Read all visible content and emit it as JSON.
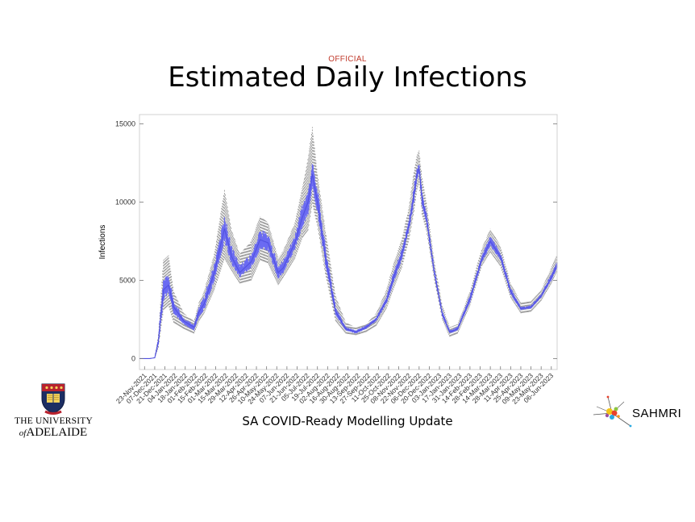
{
  "header": {
    "classification": "OFFICIAL",
    "title": "Estimated Daily Infections"
  },
  "footer": {
    "subtitle": "SA COVID-Ready Modelling Update"
  },
  "logos": {
    "university": {
      "line1": "THE UNIVERSITY",
      "of": "of",
      "line2": "ADELAIDE"
    },
    "institute": {
      "name": "SAHMRI"
    }
  },
  "chart_data": {
    "type": "area",
    "title": "",
    "xlabel": "",
    "ylabel": "Infections",
    "ylim": [
      -700,
      15600
    ],
    "yticks": [
      0,
      5000,
      10000,
      15000
    ],
    "grid": false,
    "x_date_range": [
      "2021-11-16",
      "2023-06-14"
    ],
    "xtick_labels": [
      "23-Nov-2021",
      "07-Dec-2021",
      "21-Dec-2021",
      "04-Jan-2022",
      "18-Jan-2022",
      "01-Feb-2022",
      "15-Feb-2022",
      "01-Mar-2022",
      "15-Mar-2022",
      "29-Mar-2022",
      "12-Apr-2022",
      "26-Apr-2022",
      "10-May-2022",
      "24-May-2022",
      "07-Jun-2022",
      "21-Jun-2022",
      "05-Jul-2022",
      "19-Jul-2022",
      "02-Aug-2022",
      "16-Aug-2022",
      "30-Aug-2022",
      "13-Sep-2022",
      "27-Sep-2022",
      "11-Oct-2022",
      "25-Oct-2022",
      "08-Nov-2022",
      "22-Nov-2022",
      "06-Dec-2022",
      "20-Dec-2022",
      "03-Jan-2023",
      "17-Jan-2023",
      "31-Jan-2023",
      "14-Feb-2023",
      "28-Feb-2023",
      "14-Mar-2023",
      "28-Mar-2023",
      "11-Apr-2023",
      "25-Apr-2023",
      "09-May-2023",
      "23-May-2023",
      "06-Jun-2023"
    ],
    "colors": {
      "band": "#6b6bf2",
      "envelope": "#888888"
    },
    "series": [
      {
        "x": [
          "2021-11-16",
          "2021-11-30",
          "2021-12-07",
          "2021-12-12",
          "2021-12-19",
          "2021-12-26",
          "2022-01-02",
          "2022-01-16",
          "2022-01-30",
          "2022-02-06",
          "2022-02-13",
          "2022-02-27",
          "2022-03-13",
          "2022-03-23",
          "2022-04-03",
          "2022-04-19",
          "2022-05-01",
          "2022-05-12",
          "2022-05-26",
          "2022-06-02",
          "2022-06-18",
          "2022-06-28",
          "2022-07-06",
          "2022-07-12",
          "2022-07-19",
          "2022-07-30",
          "2022-08-13",
          "2022-08-27",
          "2022-09-10",
          "2022-09-24",
          "2022-10-08",
          "2022-10-22",
          "2022-11-01",
          "2022-11-12",
          "2022-11-22",
          "2022-11-29",
          "2022-12-03",
          "2022-12-06",
          "2022-12-10",
          "2022-12-16",
          "2022-12-27",
          "2023-01-07",
          "2023-01-17",
          "2023-01-28",
          "2023-02-14",
          "2023-03-02",
          "2023-03-14",
          "2023-03-28",
          "2023-04-11",
          "2023-04-25",
          "2023-05-09",
          "2023-05-23",
          "2023-06-06",
          "2023-06-14"
        ],
        "mid": [
          0,
          0,
          50,
          1100,
          4400,
          4700,
          3300,
          2400,
          2000,
          3000,
          3500,
          5500,
          8300,
          6500,
          5500,
          6200,
          7600,
          7400,
          5500,
          5800,
          7400,
          9000,
          10000,
          11800,
          10000,
          6500,
          3000,
          1900,
          1700,
          2000,
          2500,
          3700,
          5200,
          6600,
          8500,
          10500,
          11800,
          12200,
          10200,
          9000,
          5500,
          2800,
          1700,
          1900,
          3800,
          6300,
          7500,
          6500,
          4300,
          3200,
          3300,
          4000,
          5200,
          6000
        ],
        "band_low": [
          0,
          0,
          40,
          900,
          3700,
          4200,
          2900,
          2200,
          1800,
          2700,
          3100,
          5000,
          7500,
          6000,
          5200,
          5800,
          7000,
          6900,
          5100,
          5500,
          7000,
          8400,
          9200,
          11000,
          9300,
          6000,
          2800,
          1800,
          1600,
          1900,
          2400,
          3500,
          4900,
          6300,
          8200,
          10000,
          11500,
          11800,
          9800,
          8700,
          5300,
          2700,
          1600,
          1800,
          3600,
          6100,
          7200,
          6300,
          4100,
          3100,
          3200,
          3900,
          5000,
          5800
        ],
        "band_high": [
          0,
          0,
          60,
          1300,
          5000,
          5300,
          3700,
          2600,
          2200,
          3300,
          3900,
          6000,
          9000,
          7100,
          5900,
          6600,
          8100,
          7900,
          5900,
          6200,
          7800,
          9700,
          10600,
          12400,
          10700,
          7100,
          3300,
          2000,
          1800,
          2100,
          2600,
          3900,
          5500,
          6900,
          8800,
          10900,
          12200,
          12500,
          10600,
          9300,
          5700,
          3000,
          1800,
          2000,
          4000,
          6500,
          7800,
          6700,
          4500,
          3300,
          3400,
          4100,
          5400,
          6200
        ],
        "env_low": [
          0,
          0,
          30,
          700,
          3100,
          3400,
          2300,
          1900,
          1600,
          2400,
          2900,
          4400,
          6400,
          5600,
          4800,
          5000,
          6300,
          6100,
          4700,
          5200,
          6400,
          7700,
          8200,
          9900,
          8500,
          5400,
          2400,
          1600,
          1500,
          1700,
          2100,
          3200,
          4500,
          5800,
          7600,
          9400,
          10800,
          11200,
          9200,
          8200,
          5000,
          2500,
          1400,
          1600,
          3400,
          5900,
          6800,
          5900,
          3900,
          2900,
          3000,
          3700,
          4800,
          5600
        ],
        "env_high": [
          0,
          0,
          80,
          1600,
          6300,
          6600,
          4300,
          2900,
          2400,
          3600,
          4300,
          6700,
          10800,
          8200,
          6700,
          7500,
          9100,
          8700,
          6400,
          6900,
          8700,
          10900,
          12800,
          14800,
          11800,
          8200,
          4000,
          2300,
          2000,
          2200,
          2900,
          4400,
          6100,
          7600,
          9700,
          12000,
          13000,
          13300,
          11600,
          10000,
          6200,
          3400,
          2000,
          2200,
          4300,
          7000,
          8300,
          7200,
          4800,
          3600,
          3700,
          4400,
          5800,
          6700
        ]
      }
    ]
  }
}
